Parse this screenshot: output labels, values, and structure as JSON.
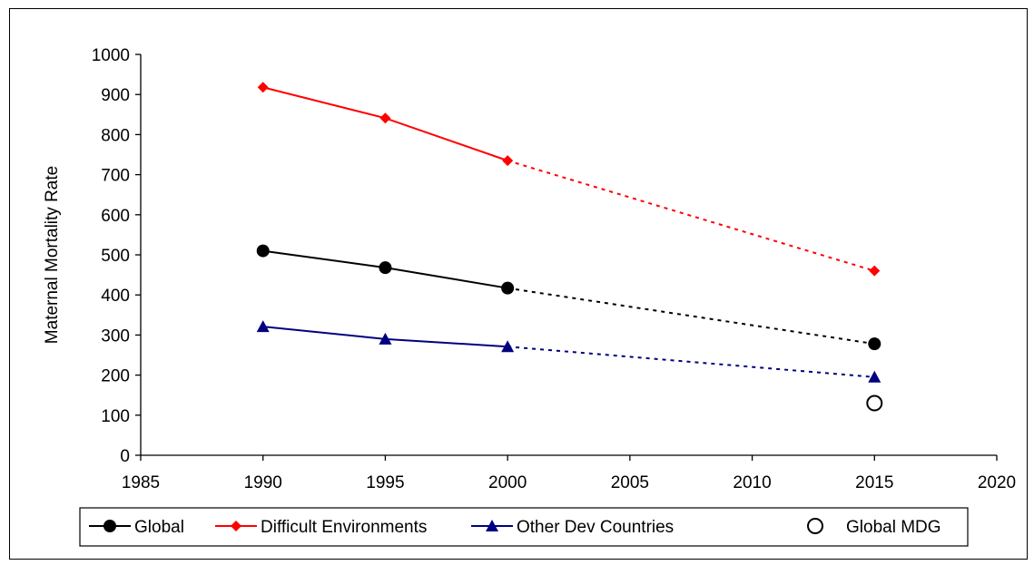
{
  "chart_data": {
    "type": "line",
    "ylabel": "Maternal Mortality Rate",
    "xlabel": "",
    "xlim": [
      1985,
      2020
    ],
    "ylim": [
      0,
      1000
    ],
    "x_ticks": [
      1985,
      1990,
      1995,
      2000,
      2005,
      2010,
      2015,
      2020
    ],
    "y_ticks": [
      0,
      100,
      200,
      300,
      400,
      500,
      600,
      700,
      800,
      900,
      1000
    ],
    "grid": false,
    "legend_position": "bottom",
    "series": [
      {
        "name": "Global",
        "color": "#000000",
        "marker": "circle",
        "x": [
          1990,
          1995,
          2000
        ],
        "y": [
          510,
          468,
          417
        ],
        "projection": {
          "x": [
            2000,
            2015
          ],
          "y": [
            417,
            278
          ]
        }
      },
      {
        "name": "Difficult Environments",
        "color": "#ff0000",
        "marker": "diamond",
        "x": [
          1990,
          1995,
          2000
        ],
        "y": [
          918,
          841,
          735
        ],
        "projection": {
          "x": [
            2000,
            2015
          ],
          "y": [
            735,
            460
          ]
        }
      },
      {
        "name": "Other Dev Countries",
        "color": "#000080",
        "marker": "triangle",
        "x": [
          1990,
          1995,
          2000
        ],
        "y": [
          321,
          290,
          271
        ],
        "projection": {
          "x": [
            2000,
            2015
          ],
          "y": [
            271,
            195
          ]
        }
      },
      {
        "name": "Global MDG",
        "color": "#000000",
        "marker": "open-circle",
        "x": [
          2015
        ],
        "y": [
          130
        ]
      }
    ]
  }
}
